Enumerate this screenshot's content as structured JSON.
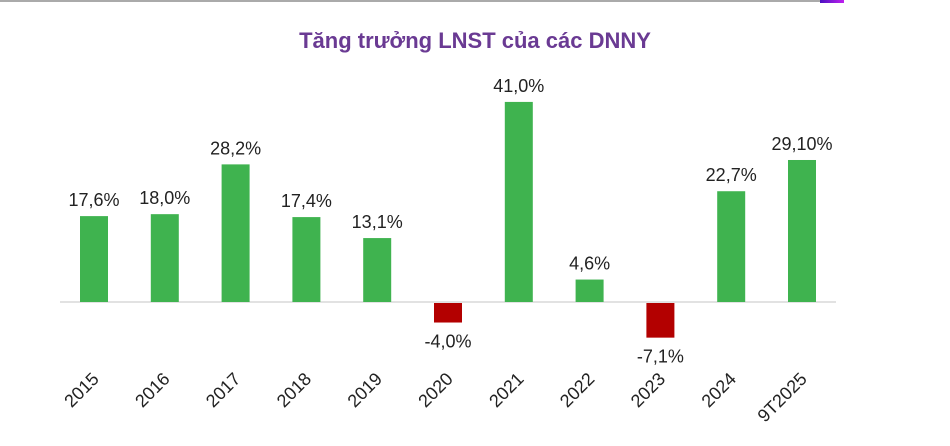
{
  "chart_data": {
    "type": "bar",
    "title": "Tăng trưởng LNST của các DNNY",
    "categories": [
      "2015",
      "2016",
      "2017",
      "2018",
      "2019",
      "2020",
      "2021",
      "2022",
      "2023",
      "2024",
      "9T2025"
    ],
    "values": [
      17.6,
      18.0,
      28.2,
      17.4,
      13.1,
      -4.0,
      41.0,
      4.6,
      -7.1,
      22.7,
      29.1
    ],
    "data_labels": [
      "17,6%",
      "18,0%",
      "28,2%",
      "17,4%",
      "13,1%",
      "-4,0%",
      "41,0%",
      "4,6%",
      "-7,1%",
      "22,7%",
      "29,10%"
    ],
    "unit": "%",
    "grid": false,
    "legend": "none",
    "colors": {
      "positive": "#3fb34f",
      "negative": "#b30000",
      "title": "#6a3a93"
    }
  }
}
